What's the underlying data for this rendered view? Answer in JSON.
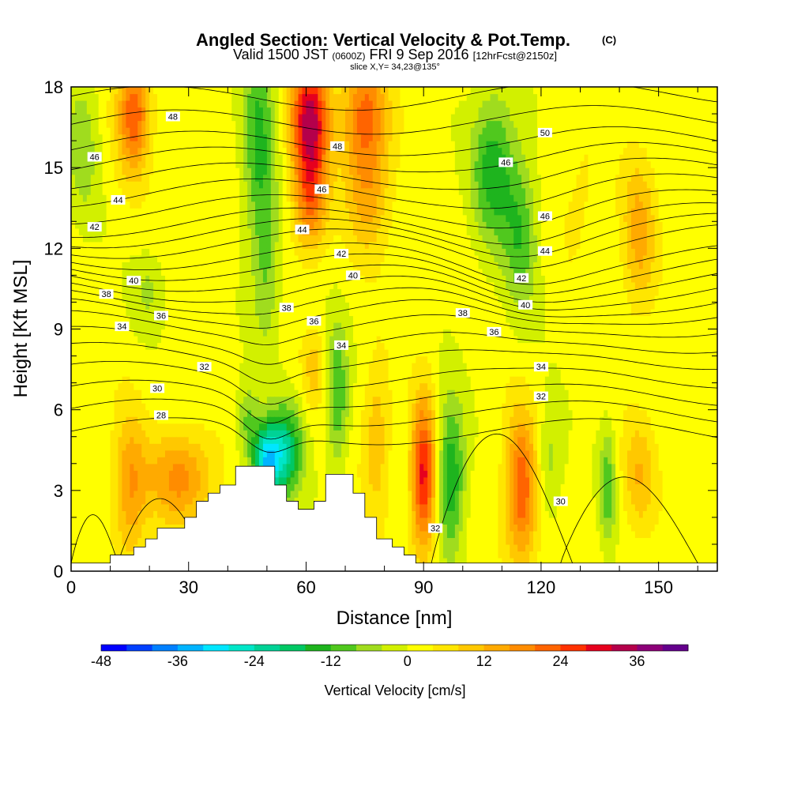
{
  "chart_data": {
    "type": "heatmap",
    "title": "Angled Section: Vertical Velocity & Pot.Temp.",
    "title_mark": "(C)",
    "subtitle_parts": [
      "Valid 1500 JST",
      "(0600Z)",
      "FRI 9 Sep 2016",
      "[12hrFcst@2150z]"
    ],
    "slice_label": "slice X,Y= 34,23@135°",
    "xlabel": "Distance [nm]",
    "ylabel": "Height [Kft MSL]",
    "xlim": [
      0,
      165
    ],
    "ylim": [
      0,
      18
    ],
    "x_ticks": [
      0,
      30,
      60,
      90,
      120,
      150
    ],
    "y_ticks": [
      0,
      3,
      6,
      9,
      12,
      15,
      18
    ],
    "colorbar": {
      "label": "Vertical Velocity [cm/s]",
      "min": -48,
      "max": 42,
      "step": 4,
      "tick_values": [
        -48,
        -36,
        -24,
        -12,
        0,
        12,
        24,
        36
      ],
      "colors": [
        "#0000ff",
        "#0040ff",
        "#0080ff",
        "#00b4ff",
        "#00e6ff",
        "#00e6c8",
        "#00d296",
        "#00c864",
        "#1eb41e",
        "#50c81e",
        "#a0dc1e",
        "#d2f000",
        "#ffff00",
        "#ffe600",
        "#ffc800",
        "#ffaa00",
        "#ff8c00",
        "#ff6400",
        "#ff3200",
        "#e6001e",
        "#b4004b",
        "#8c0078",
        "#64008c"
      ]
    },
    "terrain_nm_kft": [
      [
        0,
        0.3
      ],
      [
        10,
        0.3
      ],
      [
        10,
        0.6
      ],
      [
        16,
        0.6
      ],
      [
        16,
        0.9
      ],
      [
        19,
        0.9
      ],
      [
        19,
        1.2
      ],
      [
        22,
        1.2
      ],
      [
        22,
        1.6
      ],
      [
        29,
        1.6
      ],
      [
        29,
        2.0
      ],
      [
        32,
        2.0
      ],
      [
        32,
        2.6
      ],
      [
        35,
        2.6
      ],
      [
        35,
        2.9
      ],
      [
        38,
        2.9
      ],
      [
        38,
        3.2
      ],
      [
        42,
        3.2
      ],
      [
        42,
        3.9
      ],
      [
        52,
        3.9
      ],
      [
        52,
        3.2
      ],
      [
        55,
        3.2
      ],
      [
        55,
        2.6
      ],
      [
        58,
        2.6
      ],
      [
        58,
        2.3
      ],
      [
        62,
        2.3
      ],
      [
        62,
        2.6
      ],
      [
        65,
        2.6
      ],
      [
        65,
        3.6
      ],
      [
        72,
        3.6
      ],
      [
        72,
        2.9
      ],
      [
        75,
        2.9
      ],
      [
        75,
        2.0
      ],
      [
        78,
        2.0
      ],
      [
        78,
        1.2
      ],
      [
        82,
        1.2
      ],
      [
        82,
        0.9
      ],
      [
        85,
        0.9
      ],
      [
        85,
        0.6
      ],
      [
        88,
        0.6
      ],
      [
        88,
        0.3
      ],
      [
        165,
        0.3
      ]
    ],
    "velocity_features": [
      {
        "x": 16,
        "z": 17,
        "value": 22,
        "sx": 3,
        "sz": 1.5
      },
      {
        "x": 15,
        "z": 3,
        "value": 14,
        "sx": 3,
        "sz": 2
      },
      {
        "x": 28,
        "z": 3.5,
        "value": 16,
        "sx": 6,
        "sz": 1.2
      },
      {
        "x": 3,
        "z": 16,
        "value": -8,
        "sx": 3,
        "sz": 2
      },
      {
        "x": 20,
        "z": 10.5,
        "value": -6,
        "sx": 3,
        "sz": 1
      },
      {
        "x": 48,
        "z": 16,
        "value": -14,
        "sx": 3,
        "sz": 3
      },
      {
        "x": 50,
        "z": 11,
        "value": -8,
        "sx": 2.5,
        "sz": 2
      },
      {
        "x": 50,
        "z": 4,
        "value": -32,
        "sx": 2.5,
        "sz": 1
      },
      {
        "x": 55,
        "z": 4.5,
        "value": -20,
        "sx": 3,
        "sz": 1.2
      },
      {
        "x": 45,
        "z": 5.5,
        "value": -10,
        "sx": 2,
        "sz": 1
      },
      {
        "x": 61,
        "z": 17,
        "value": 30,
        "sx": 3.5,
        "sz": 1.5
      },
      {
        "x": 61,
        "z": 14,
        "value": 20,
        "sx": 3,
        "sz": 1.5
      },
      {
        "x": 75,
        "z": 17,
        "value": 20,
        "sx": 4,
        "sz": 1.5
      },
      {
        "x": 76,
        "z": 14,
        "value": 12,
        "sx": 4,
        "sz": 1.5
      },
      {
        "x": 68,
        "z": 6.5,
        "value": -14,
        "sx": 2,
        "sz": 1.8
      },
      {
        "x": 62,
        "z": 7.5,
        "value": 8,
        "sx": 2,
        "sz": 1
      },
      {
        "x": 78,
        "z": 5,
        "value": 10,
        "sx": 2.5,
        "sz": 2
      },
      {
        "x": 90,
        "z": 3.5,
        "value": 28,
        "sx": 2.2,
        "sz": 2
      },
      {
        "x": 97,
        "z": 3.5,
        "value": -18,
        "sx": 2.5,
        "sz": 2
      },
      {
        "x": 108,
        "z": 15,
        "value": -16,
        "sx": 4,
        "sz": 2
      },
      {
        "x": 115,
        "z": 12.5,
        "value": -12,
        "sx": 3,
        "sz": 2
      },
      {
        "x": 115,
        "z": 3,
        "value": 22,
        "sx": 3,
        "sz": 2
      },
      {
        "x": 122,
        "z": 4,
        "value": -8,
        "sx": 2.5,
        "sz": 1.5
      },
      {
        "x": 137,
        "z": 3.2,
        "value": -12,
        "sx": 1.5,
        "sz": 1.5
      },
      {
        "x": 145,
        "z": 3.5,
        "value": 10,
        "sx": 3,
        "sz": 1.5
      },
      {
        "x": 130,
        "z": 14,
        "value": 4,
        "sx": 4,
        "sz": 2
      },
      {
        "x": 145,
        "z": 12.5,
        "value": 12,
        "sx": 3,
        "sz": 2
      }
    ],
    "theta_contours": {
      "levels": [
        28,
        29,
        30,
        31,
        32,
        33,
        34,
        35,
        36,
        37,
        38,
        39,
        40,
        41,
        42,
        43,
        44,
        45,
        46,
        47,
        48,
        49,
        50
      ],
      "base_heights_kft": [
        5.2,
        5.9,
        6.6,
        7.3,
        8.0,
        8.6,
        9.2,
        9.7,
        10.1,
        10.5,
        10.9,
        11.3,
        11.7,
        12.1,
        12.5,
        12.9,
        13.4,
        14.0,
        14.6,
        15.2,
        15.8,
        16.6,
        17.5
      ]
    },
    "contour_labels": [
      {
        "text": "48",
        "x": 26,
        "z": 16.9
      },
      {
        "text": "46",
        "x": 6,
        "z": 15.4
      },
      {
        "text": "44",
        "x": 12,
        "z": 13.8
      },
      {
        "text": "42",
        "x": 6,
        "z": 12.8
      },
      {
        "text": "40",
        "x": 16,
        "z": 10.8
      },
      {
        "text": "38",
        "x": 9,
        "z": 10.3
      },
      {
        "text": "36",
        "x": 23,
        "z": 9.5
      },
      {
        "text": "34",
        "x": 13,
        "z": 9.1
      },
      {
        "text": "32",
        "x": 34,
        "z": 7.6
      },
      {
        "text": "30",
        "x": 22,
        "z": 6.8
      },
      {
        "text": "28",
        "x": 23,
        "z": 5.8
      },
      {
        "text": "48",
        "x": 68,
        "z": 15.8
      },
      {
        "text": "46",
        "x": 64,
        "z": 14.2
      },
      {
        "text": "44",
        "x": 59,
        "z": 12.7
      },
      {
        "text": "42",
        "x": 69,
        "z": 11.8
      },
      {
        "text": "40",
        "x": 72,
        "z": 11.0
      },
      {
        "text": "38",
        "x": 55,
        "z": 9.8
      },
      {
        "text": "36",
        "x": 62,
        "z": 9.3
      },
      {
        "text": "34",
        "x": 69,
        "z": 8.4
      },
      {
        "text": "50",
        "x": 121,
        "z": 16.3
      },
      {
        "text": "46",
        "x": 111,
        "z": 15.2
      },
      {
        "text": "46",
        "x": 121,
        "z": 13.2
      },
      {
        "text": "44",
        "x": 121,
        "z": 11.9
      },
      {
        "text": "42",
        "x": 115,
        "z": 10.9
      },
      {
        "text": "40",
        "x": 116,
        "z": 9.9
      },
      {
        "text": "38",
        "x": 100,
        "z": 9.6
      },
      {
        "text": "36",
        "x": 108,
        "z": 8.9
      },
      {
        "text": "34",
        "x": 120,
        "z": 7.6
      },
      {
        "text": "32",
        "x": 120,
        "z": 6.5
      },
      {
        "text": "30",
        "x": 125,
        "z": 2.6
      },
      {
        "text": "32",
        "x": 93,
        "z": 1.6
      }
    ]
  }
}
